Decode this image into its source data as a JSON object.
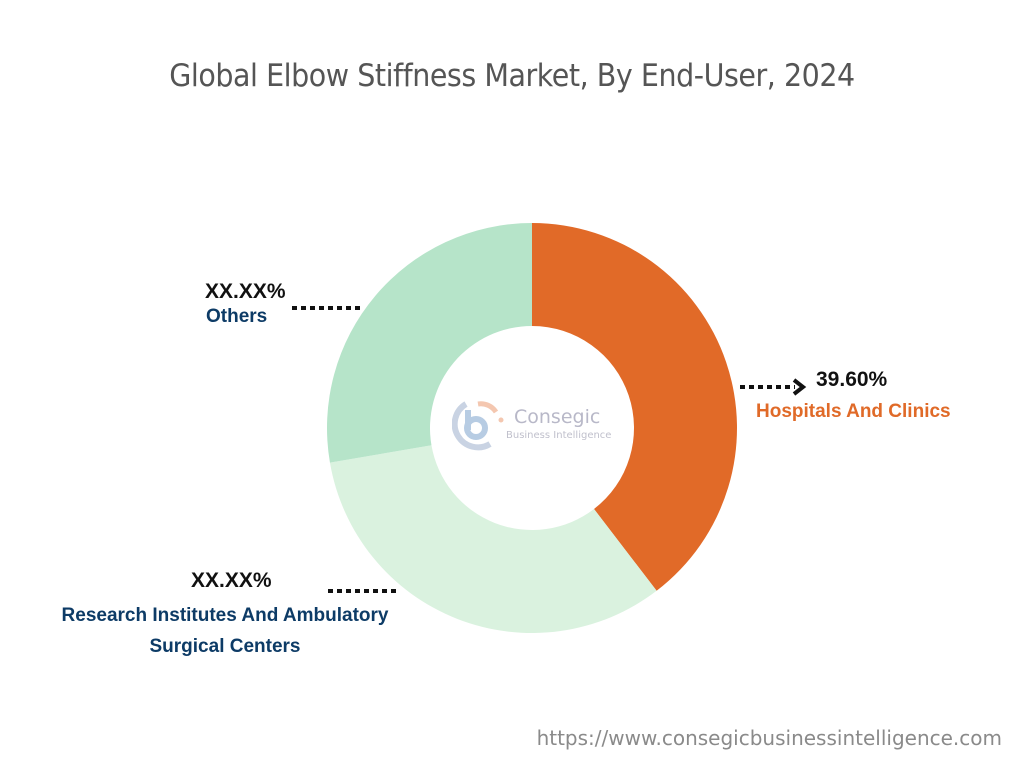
{
  "title": "Global Elbow Stiffness Market, By End-User, 2024",
  "footer_url": "https://www.consegicbusinessintelligence.com",
  "logo": {
    "name": "Consegic",
    "tagline": "Business Intelligence"
  },
  "labels": {
    "hospitals": {
      "pct": "39.60%",
      "name": "Hospitals And Clinics"
    },
    "research": {
      "pct": "XX.XX%",
      "name_line1": "Research Institutes And Ambulatory",
      "name_line2": "Surgical Centers"
    },
    "others": {
      "pct": "XX.XX%",
      "name": "Others"
    }
  },
  "colors": {
    "hospitals": "#e16a28",
    "research": "#daf2df",
    "others": "#b6e4c9",
    "label_navy": "#0d3b66",
    "label_orange": "#e06a28"
  },
  "chart_data": {
    "type": "pie",
    "variant": "donut",
    "title": "Global Elbow Stiffness Market, By End-User, 2024",
    "categories": [
      "Hospitals And Clinics",
      "Research Institutes And Ambulatory Surgical Centers",
      "Others"
    ],
    "values": [
      39.6,
      32.7,
      27.7
    ],
    "value_labels": [
      "39.60%",
      "XX.XX%",
      "XX.XX%"
    ],
    "units": "%",
    "start_angle_deg": 0,
    "direction": "clockwise",
    "legend": "none (inline callout labels)",
    "note": "Only Hospitals And Clinics value (39.60%) is shown; other values estimated from slice angles"
  }
}
